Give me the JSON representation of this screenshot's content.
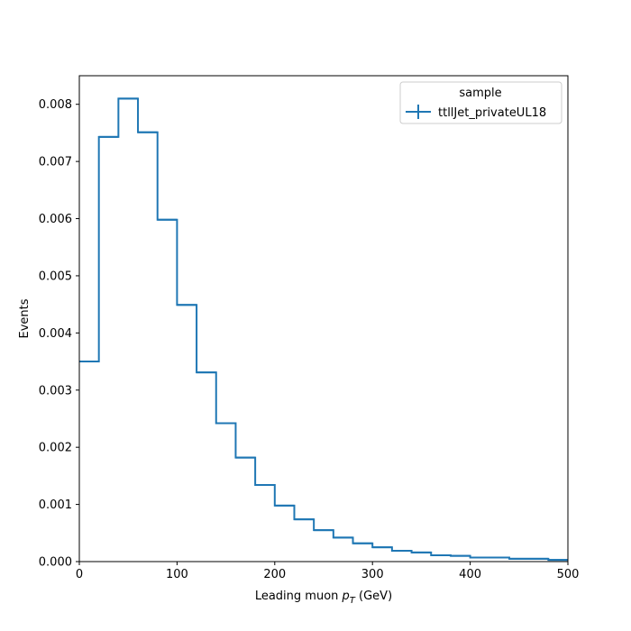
{
  "chart_data": {
    "type": "histogram-step",
    "title": "",
    "xlabel_prefix": "Leading muon ",
    "xlabel_var": "p",
    "xlabel_sub": "T",
    "xlabel_suffix": " (GeV)",
    "ylabel": "Events",
    "xlim": [
      0,
      500
    ],
    "ylim": [
      0,
      0.0085
    ],
    "xticks": [
      0,
      100,
      200,
      300,
      400,
      500
    ],
    "xtick_labels": [
      "0",
      "100",
      "200",
      "300",
      "400",
      "500"
    ],
    "yticks": [
      0,
      0.001,
      0.002,
      0.003,
      0.004,
      0.005,
      0.006,
      0.007,
      0.008
    ],
    "ytick_labels": [
      "0.000",
      "0.001",
      "0.002",
      "0.003",
      "0.004",
      "0.005",
      "0.006",
      "0.007",
      "0.008"
    ],
    "grid": false,
    "legend": {
      "title": "sample",
      "placement": "top-right",
      "entries": [
        "ttllJet_privateUL18"
      ]
    },
    "series": [
      {
        "name": "ttllJet_privateUL18",
        "color": "#1f77b4",
        "bin_edges": [
          0,
          20,
          40,
          60,
          80,
          100,
          120,
          140,
          160,
          180,
          200,
          220,
          240,
          260,
          280,
          300,
          320,
          340,
          360,
          380,
          400,
          420,
          440,
          460,
          480,
          500
        ],
        "values": [
          0.0035,
          0.00743,
          0.0081,
          0.00751,
          0.00598,
          0.00449,
          0.00331,
          0.00242,
          0.00182,
          0.00134,
          0.00098,
          0.00074,
          0.00055,
          0.00042,
          0.00032,
          0.00025,
          0.00019,
          0.00016,
          0.00011,
          0.0001,
          7e-05,
          7e-05,
          5e-05,
          5e-05,
          3e-05
        ]
      }
    ]
  }
}
